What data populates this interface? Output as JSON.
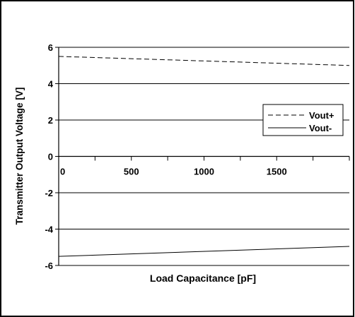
{
  "chart_data": {
    "type": "line",
    "xlabel": "Load Capacitance [pF]",
    "ylabel": "Transmitter Output Voltage [V]",
    "xlim": [
      0,
      2000
    ],
    "ylim": [
      -6,
      6
    ],
    "x_ticks": [
      0,
      500,
      1000,
      1500
    ],
    "y_ticks": [
      6,
      4,
      2,
      0,
      -2,
      -4,
      -6
    ],
    "x_tick_labels": [
      "0",
      "500",
      "1000",
      "1500"
    ],
    "y_tick_labels": [
      "6",
      "4",
      "2",
      "0",
      "-2",
      "-4",
      "-6"
    ],
    "grid": "horizontal",
    "legend_position": "right",
    "series": [
      {
        "name": "Vout+",
        "style": "dashed",
        "x": [
          0,
          2000
        ],
        "y": [
          5.5,
          5.0
        ]
      },
      {
        "name": "Vout-",
        "style": "solid",
        "x": [
          0,
          2000
        ],
        "y": [
          -5.5,
          -4.95
        ]
      }
    ]
  }
}
